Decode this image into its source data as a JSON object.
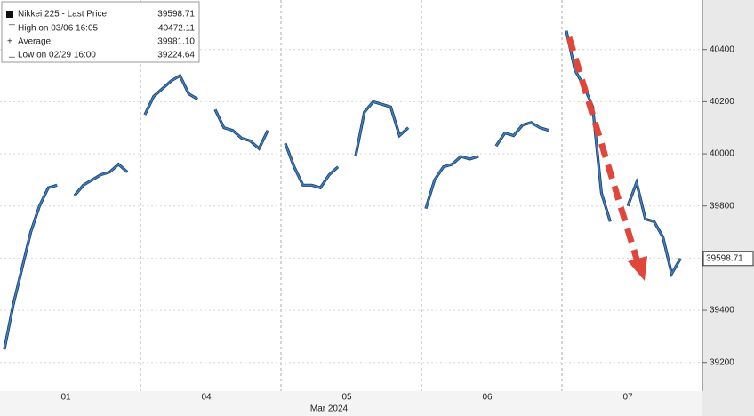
{
  "chart_data": {
    "type": "line",
    "x_label": "Mar 2024",
    "categories": [
      null,
      null,
      null,
      null,
      null,
      null,
      null,
      "01",
      null,
      null,
      null,
      null,
      null,
      null,
      null,
      null,
      null,
      null,
      null,
      null,
      null,
      null,
      null,
      "04",
      null,
      null,
      null,
      null,
      null,
      null,
      null,
      null,
      null,
      null,
      null,
      null,
      null,
      null,
      null,
      "05",
      null,
      null,
      null,
      null,
      null,
      null,
      null,
      null,
      null,
      null,
      null,
      null,
      null,
      null,
      null,
      "06",
      null,
      null,
      null,
      null,
      null,
      null,
      null,
      null,
      null,
      null,
      null,
      null,
      null,
      null,
      null,
      "07",
      null,
      null,
      null,
      null,
      null,
      null,
      null,
      null
    ],
    "series": [
      {
        "name": "Nikkei 225 - Last Price",
        "color": "#3d7fc4",
        "values": [
          39250,
          39420,
          39560,
          39700,
          39800,
          39870,
          39880,
          null,
          39840,
          39880,
          39900,
          39920,
          39930,
          39960,
          39930,
          null,
          40150,
          40220,
          40250,
          40280,
          40300,
          40230,
          40210,
          null,
          40170,
          40100,
          40090,
          40060,
          40050,
          40020,
          40090,
          null,
          40040,
          39950,
          39880,
          39880,
          39870,
          39920,
          39950,
          null,
          39990,
          40160,
          40200,
          40190,
          40180,
          40070,
          40100,
          null,
          39790,
          39900,
          39950,
          39960,
          39990,
          39980,
          39990,
          null,
          40030,
          40080,
          40070,
          40110,
          40120,
          40100,
          40090,
          null,
          40472.11,
          40320,
          40260,
          40180,
          39850,
          39740,
          null,
          39800,
          39890,
          39750,
          39740,
          39680,
          39540,
          39598.71,
          null,
          null
        ]
      }
    ],
    "last_price": 39598.71,
    "stats": [
      {
        "label": "High on 03/06 16:05",
        "value": 40472.11
      },
      {
        "label": "Average",
        "value": {
          "value": 39981.1,
          "label": "39981.10"
        }
      },
      {
        "label": "Low on 02/29 16:00",
        "value": 39224.64
      }
    ],
    "ylim": [
      39090,
      40590
    ],
    "yticks": [
      39200,
      39400,
      39600,
      39800,
      40000,
      40200,
      40400
    ],
    "grid": true
  }
}
